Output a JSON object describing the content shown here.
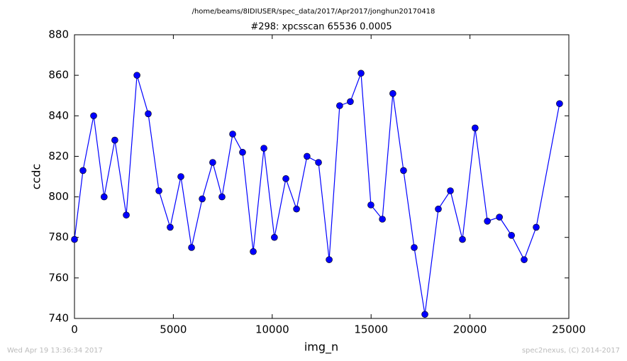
{
  "chart_data": {
    "type": "line",
    "header": "/home/beams/8IDIUSER/spec_data/2017/Apr2017/jonghun20170418",
    "title": "#298: xpcsscan 65536 0.0005",
    "xlabel": "img_n",
    "ylabel": "ccdc",
    "footer_left": "Wed Apr 19 13:36:34 2017",
    "footer_right": "spec2nexus, (C) 2014-2017",
    "xlim": [
      0,
      25000
    ],
    "ylim": [
      740,
      880
    ],
    "xticks": [
      0,
      5000,
      10000,
      15000,
      20000,
      25000
    ],
    "yticks": [
      740,
      760,
      780,
      800,
      820,
      840,
      860,
      880
    ],
    "series": [
      {
        "name": "ccdc",
        "color": "#0000ff",
        "x": [
          0,
          430,
          970,
          1500,
          2040,
          2620,
          3160,
          3730,
          4270,
          4840,
          5380,
          5920,
          6460,
          6990,
          7460,
          8000,
          8500,
          9040,
          9580,
          10110,
          10690,
          11230,
          11760,
          12340,
          12880,
          13410,
          13950,
          14490,
          14990,
          15570,
          16100,
          16640,
          17180,
          17720,
          18400,
          19010,
          19620,
          20260,
          20880,
          21490,
          22100,
          22740,
          23350,
          24530
        ],
        "values": [
          779,
          813,
          840,
          800,
          828,
          791,
          860,
          841,
          803,
          785,
          810,
          775,
          799,
          817,
          800,
          831,
          822,
          773,
          824,
          780,
          809,
          794,
          820,
          817,
          769,
          845,
          847,
          861,
          796,
          789,
          851,
          813,
          775,
          742,
          794,
          803,
          779,
          834,
          788,
          790,
          781,
          769,
          785,
          846
        ]
      }
    ]
  }
}
